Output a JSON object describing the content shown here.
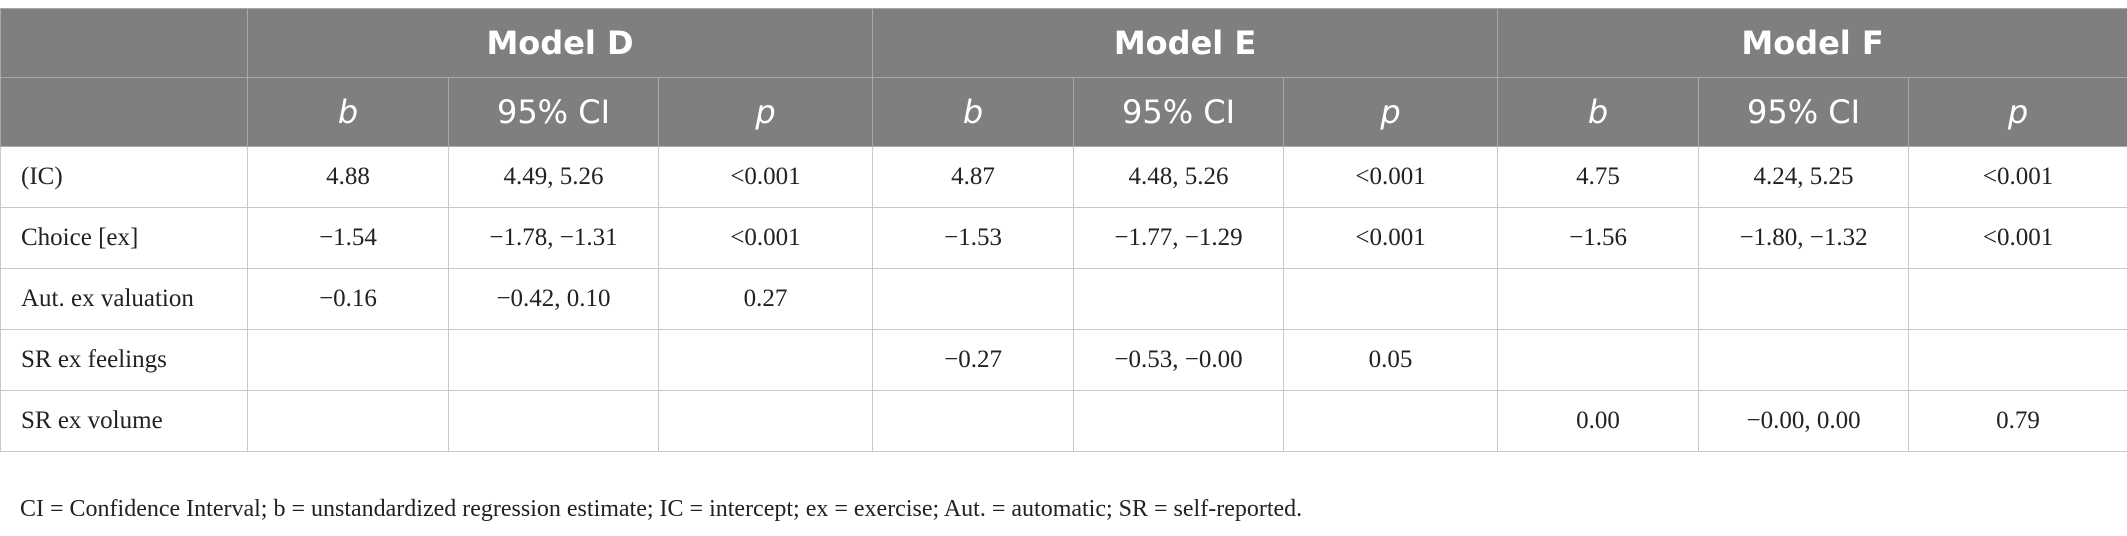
{
  "table": {
    "models": [
      "Model D",
      "Model E",
      "Model F"
    ],
    "subheaders": [
      "b",
      "95% CI",
      "p",
      "b",
      "95% CI",
      "p",
      "b",
      "95% CI",
      "p"
    ],
    "rows": [
      {
        "label": "(IC)",
        "cells": [
          "4.88",
          "4.49, 5.26",
          "<0.001",
          "4.87",
          "4.48, 5.26",
          "<0.001",
          "4.75",
          "4.24, 5.25",
          "<0.001"
        ]
      },
      {
        "label": "Choice [ex]",
        "cells": [
          "−1.54",
          "−1.78, −1.31",
          "<0.001",
          "−1.53",
          "−1.77, −1.29",
          "<0.001",
          "−1.56",
          "−1.80, −1.32",
          "<0.001"
        ]
      },
      {
        "label": "Aut. ex valuation",
        "cells": [
          "−0.16",
          "−0.42, 0.10",
          "0.27",
          "",
          "",
          "",
          "",
          "",
          ""
        ]
      },
      {
        "label": "SR ex feelings",
        "cells": [
          "",
          "",
          "",
          "−0.27",
          "−0.53, −0.00",
          "0.05",
          "",
          "",
          ""
        ]
      },
      {
        "label": "SR ex volume",
        "cells": [
          "",
          "",
          "",
          "",
          "",
          "",
          "0.00",
          "−0.00, 0.00",
          "0.79"
        ]
      }
    ]
  },
  "footnote": "CI = Confidence Interval; b = unstandardized regression estimate; IC = intercept; ex = exercise; Aut. = automatic; SR = self-reported."
}
